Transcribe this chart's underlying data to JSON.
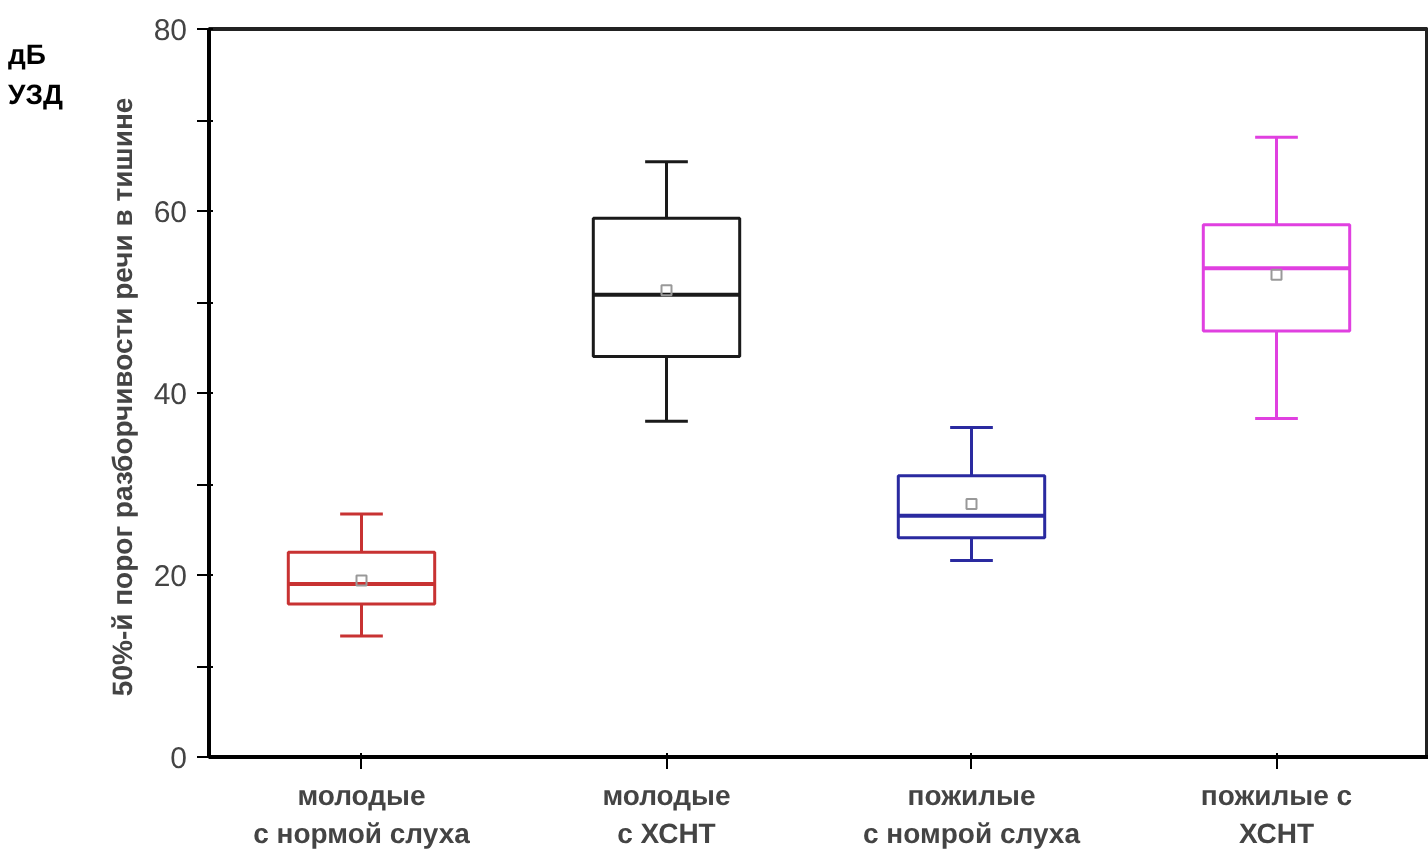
{
  "chart_data": {
    "type": "box",
    "categories": [
      "молодые\nс нормой слуха",
      "молодые\nс ХСНТ",
      "пожилые\nс номрой слуха",
      "пожилые с\nХСНТ"
    ],
    "boxes": [
      {
        "low": 13.3,
        "q1": 16.8,
        "median": 19,
        "q3": 22.5,
        "high": 26.7,
        "mean": 19.4
      },
      {
        "low": 36.9,
        "q1": 44,
        "median": 50.8,
        "q3": 59.2,
        "high": 65.4,
        "mean": 51.3
      },
      {
        "low": 21.6,
        "q1": 24.1,
        "median": 26.5,
        "q3": 30.9,
        "high": 36.2,
        "mean": 27.8
      },
      {
        "low": 37.2,
        "q1": 46.8,
        "median": 53.7,
        "q3": 58.5,
        "high": 68.1,
        "mean": 53
      }
    ],
    "colors": [
      "#c83232",
      "#1a1a1a",
      "#2a2aa0",
      "#e040e0"
    ],
    "ylabel": "50%-й  порог разборчивости речи в тишине",
    "annotations": [
      "дБ\nУЗД"
    ],
    "ylim": [
      0,
      80
    ],
    "yticks": [
      0,
      {
        "value": 10,
        "label": null
      },
      20,
      {
        "value": 30,
        "label": null
      },
      40,
      {
        "value": 50,
        "label": null
      },
      60,
      {
        "value": 70,
        "label": null
      },
      80
    ],
    "grid": false
  }
}
